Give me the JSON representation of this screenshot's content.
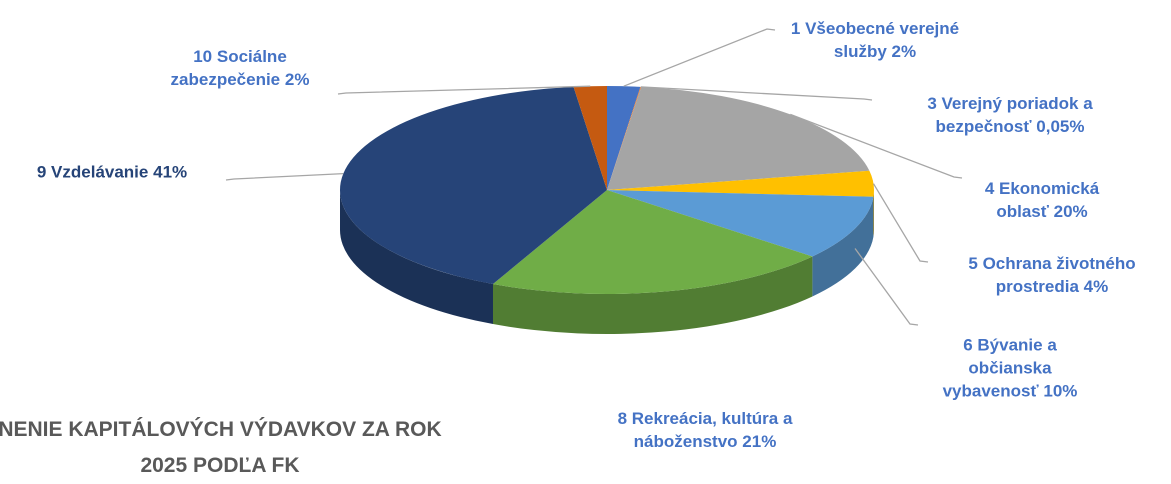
{
  "chart_data": {
    "type": "pie3d",
    "title": "NENIE KAPITÁLOVÝCH VÝDAVKOV ZA ROK 2025 PODĽA FK",
    "categories": [
      "1 Všeobecné verejné služby",
      "3 Verejný poriadok a bezpečnosť",
      "4 Ekonomická oblasť",
      "5 Ochrana životného prostredia",
      "6 Bývanie a občianska vybavenosť",
      "8 Rekreácia, kultúra a náboženstvo",
      "9 Vzdelávanie",
      "10 Sociálne zabezpečenie"
    ],
    "values": [
      2,
      0.05,
      20,
      4,
      10,
      21,
      41,
      2
    ],
    "value_labels": [
      "2%",
      "0,05%",
      "20%",
      "4%",
      "10%",
      "21%",
      "41%",
      "2%"
    ],
    "colors": [
      "#4472c4",
      "#ed7d31",
      "#a5a5a5",
      "#ffc000",
      "#5b9bd5",
      "#70ad47",
      "#264478",
      "#c55a11"
    ]
  }
}
